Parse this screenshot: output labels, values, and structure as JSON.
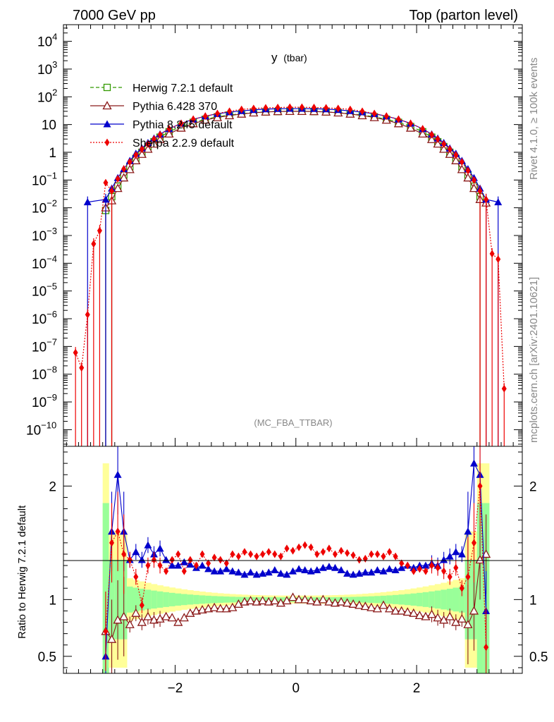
{
  "chart_data": {
    "type": "line",
    "header_left": "7000 GeV pp",
    "header_right": "Top (parton level)",
    "title_main": "y",
    "title_sub": "(tbar)",
    "watermark": "(MC_FBA_TTBAR)",
    "side_label_top": "Rivet 4.1.0, ≥ 100k events",
    "side_label_bottom": "mcplots.cern.ch [arXiv:2401.10621]",
    "xlabel": "",
    "ylabel_ratio": "Ratio to Herwig 7.2.1 default",
    "xlim": [
      -3.85,
      3.75
    ],
    "ylim_main_log10": [
      -10.6,
      4.6
    ],
    "ylim_ratio": [
      0.35,
      2.35
    ],
    "x_ticks": [
      {
        "v": -2,
        "label": "−2"
      },
      {
        "v": 0,
        "label": "0"
      },
      {
        "v": 2,
        "label": "2"
      }
    ],
    "main_ticks": [
      {
        "m": "10",
        "e": "4",
        "v": 4
      },
      {
        "m": "10",
        "e": "3",
        "v": 3
      },
      {
        "m": "10",
        "e": "2",
        "v": 2
      },
      {
        "m": "10",
        "e": "",
        "v": 1
      },
      {
        "m": "1",
        "e": "",
        "v": 0
      },
      {
        "m": "10",
        "e": "−1",
        "v": -1
      },
      {
        "m": "10",
        "e": "−2",
        "v": -2
      },
      {
        "m": "10",
        "e": "−3",
        "v": -3
      },
      {
        "m": "10",
        "e": "−4",
        "v": -4
      },
      {
        "m": "10",
        "e": "−5",
        "v": -5
      },
      {
        "m": "10",
        "e": "−6",
        "v": -6
      },
      {
        "m": "10",
        "e": "−7",
        "v": -7
      },
      {
        "m": "10",
        "e": "−8",
        "v": -8
      },
      {
        "m": "10",
        "e": "−9",
        "v": -9
      },
      {
        "m": "10",
        "e": "−10",
        "v": -10
      }
    ],
    "ratio_ticks": [
      {
        "v": 2,
        "label": "2"
      },
      {
        "v": 1,
        "label": "1"
      },
      {
        "v": 0.5,
        "label": "0.5"
      }
    ],
    "series": [
      {
        "name": "Herwig 7.2.1 default",
        "color": "#339900",
        "marker": "open-square",
        "dash": "5,3",
        "x": [
          -3.15,
          -3.05,
          -2.95,
          -2.85,
          -2.75,
          -2.65,
          -2.55,
          -2.45,
          -2.35,
          -2.25,
          -2.1,
          -1.9,
          -1.7,
          -1.5,
          -1.3,
          -1.1,
          -0.9,
          -0.7,
          -0.5,
          -0.3,
          -0.1,
          0.1,
          0.3,
          0.5,
          0.7,
          0.9,
          1.1,
          1.3,
          1.5,
          1.7,
          1.9,
          2.1,
          2.25,
          2.35,
          2.45,
          2.55,
          2.65,
          2.75,
          2.85,
          2.95,
          3.05
        ],
        "y": [
          0.008,
          0.025,
          0.06,
          0.15,
          0.3,
          0.6,
          1.0,
          1.6,
          2.4,
          3.5,
          5.5,
          8.5,
          12,
          15.5,
          19,
          22,
          24.5,
          27,
          28.5,
          29.5,
          30,
          30,
          29.5,
          28.5,
          27,
          24.5,
          22,
          19,
          15.5,
          12,
          8.5,
          5.5,
          3.5,
          2.4,
          1.6,
          1.0,
          0.6,
          0.3,
          0.15,
          0.06,
          0.025
        ]
      },
      {
        "name": "Pythia 6.428 370",
        "color": "#8b1a1a",
        "marker": "open-triangle",
        "dash": "",
        "x": [
          -3.15,
          -3.05,
          -2.95,
          -2.85,
          -2.75,
          -2.65,
          -2.55,
          -2.45,
          -2.35,
          -2.25,
          -2.1,
          -1.9,
          -1.7,
          -1.5,
          -1.3,
          -1.1,
          -0.9,
          -0.7,
          -0.5,
          -0.3,
          -0.1,
          0.1,
          0.3,
          0.5,
          0.7,
          0.9,
          1.1,
          1.3,
          1.5,
          1.7,
          1.9,
          2.1,
          2.25,
          2.35,
          2.45,
          2.55,
          2.65,
          2.75,
          2.85,
          2.95,
          3.05,
          3.15
        ],
        "y": [
          0.01,
          0.018,
          0.05,
          0.12,
          0.24,
          0.5,
          0.85,
          1.3,
          2.0,
          2.9,
          4.6,
          7.5,
          10.8,
          14.5,
          18,
          21,
          24,
          26.5,
          28.5,
          29.5,
          30,
          30,
          29.5,
          28.5,
          26.5,
          24,
          21,
          18,
          14.5,
          10.8,
          7.5,
          4.6,
          2.9,
          2.0,
          1.3,
          0.85,
          0.5,
          0.24,
          0.12,
          0.05,
          0.02,
          0.015
        ]
      },
      {
        "name": "Pythia 8.245 default",
        "color": "#0000cc",
        "marker": "filled-triangle",
        "dash": "",
        "x": [
          -3.45,
          -3.15,
          -3.05,
          -2.95,
          -2.85,
          -2.75,
          -2.65,
          -2.55,
          -2.45,
          -2.35,
          -2.25,
          -2.1,
          -1.9,
          -1.7,
          -1.5,
          -1.3,
          -1.1,
          -0.9,
          -0.7,
          -0.5,
          -0.3,
          -0.1,
          0.1,
          0.3,
          0.5,
          0.7,
          0.9,
          1.1,
          1.3,
          1.5,
          1.7,
          1.9,
          2.1,
          2.25,
          2.35,
          2.45,
          2.55,
          2.65,
          2.75,
          2.85,
          2.95,
          3.05,
          3.15,
          3.35
        ],
        "y": [
          0.016,
          0.02,
          0.05,
          0.12,
          0.25,
          0.5,
          0.9,
          1.4,
          2.2,
          3.2,
          4.5,
          7.0,
          11,
          15.5,
          20,
          24.5,
          28,
          31,
          34,
          36,
          37,
          37.5,
          37.5,
          37,
          36,
          34,
          31,
          28,
          24.5,
          20,
          15.5,
          11,
          7.0,
          4.5,
          3.2,
          2.2,
          1.4,
          0.9,
          0.5,
          0.25,
          0.12,
          0.05,
          0.02,
          0.016
        ]
      },
      {
        "name": "Sherpa 2.2.9 default",
        "color": "#ee0000",
        "marker": "filled-diamond",
        "dash": "2,2",
        "x": [
          -3.65,
          -3.55,
          -3.45,
          -3.35,
          -3.25,
          -3.15,
          -3.05,
          -2.95,
          -2.85,
          -2.75,
          -2.65,
          -2.55,
          -2.45,
          -2.35,
          -2.25,
          -2.1,
          -1.9,
          -1.7,
          -1.5,
          -1.3,
          -1.1,
          -0.9,
          -0.7,
          -0.5,
          -0.3,
          -0.1,
          0.1,
          0.3,
          0.5,
          0.7,
          0.9,
          1.1,
          1.3,
          1.5,
          1.7,
          1.9,
          2.1,
          2.25,
          2.35,
          2.45,
          2.55,
          2.65,
          2.75,
          2.85,
          2.95,
          3.05,
          3.15,
          3.25,
          3.35,
          3.45
        ],
        "y": [
          6e-08,
          1.7e-08,
          1.4e-06,
          0.0005,
          0.0015,
          0.08,
          0.04,
          0.11,
          0.25,
          0.45,
          0.8,
          1.3,
          2.0,
          3.0,
          4.3,
          7.0,
          11,
          15.5,
          20,
          25,
          30,
          35,
          38,
          40,
          41,
          42,
          42,
          41,
          40,
          38,
          35,
          30,
          25,
          20,
          15.5,
          11,
          7.0,
          4.3,
          3.0,
          2.0,
          1.3,
          0.8,
          0.45,
          0.22,
          0.1,
          0.04,
          0.02,
          0.00022,
          0.00014,
          3e-09
        ]
      }
    ],
    "ratio_series": [
      {
        "name": "Pythia 6.428 370",
        "x": [
          -3.15,
          -3.05,
          -2.95,
          -2.85,
          -2.75,
          -2.65,
          -2.55,
          -2.45,
          -2.35,
          -2.25,
          -2.15,
          -2.05,
          -1.95,
          -1.85,
          -1.75,
          -1.65,
          -1.55,
          -1.45,
          -1.35,
          -1.25,
          -1.15,
          -1.05,
          -0.95,
          -0.85,
          -0.75,
          -0.65,
          -0.55,
          -0.45,
          -0.35,
          -0.25,
          -0.15,
          -0.05,
          0.05,
          0.15,
          0.25,
          0.35,
          0.45,
          0.55,
          0.65,
          0.75,
          0.85,
          0.95,
          1.05,
          1.15,
          1.25,
          1.35,
          1.45,
          1.55,
          1.65,
          1.75,
          1.85,
          1.95,
          2.05,
          2.15,
          2.25,
          2.35,
          2.45,
          2.55,
          2.65,
          2.75,
          2.85,
          2.95,
          3.05,
          3.15
        ],
        "y": [
          0.72,
          0.65,
          0.82,
          0.85,
          0.78,
          0.88,
          0.8,
          0.85,
          0.82,
          0.83,
          0.85,
          0.84,
          0.8,
          0.84,
          0.88,
          0.9,
          0.91,
          0.92,
          0.93,
          0.92,
          0.92,
          0.93,
          0.96,
          0.98,
          0.99,
          0.98,
          0.99,
          0.98,
          0.99,
          0.97,
          0.99,
          1.02,
          1.0,
          1.0,
          0.99,
          0.98,
          1.0,
          0.98,
          0.97,
          0.98,
          0.97,
          0.96,
          0.95,
          0.94,
          0.93,
          0.92,
          0.95,
          0.92,
          0.9,
          0.9,
          0.89,
          0.88,
          0.86,
          0.85,
          0.87,
          0.84,
          0.82,
          0.85,
          0.8,
          0.83,
          0.78,
          0.9,
          1.35,
          1.4
        ]
      },
      {
        "name": "Pythia 8.245 default",
        "x": [
          -3.15,
          -3.05,
          -2.95,
          -2.85,
          -2.75,
          -2.65,
          -2.55,
          -2.45,
          -2.35,
          -2.25,
          -2.15,
          -2.05,
          -1.95,
          -1.85,
          -1.75,
          -1.65,
          -1.55,
          -1.45,
          -1.35,
          -1.25,
          -1.15,
          -1.05,
          -0.95,
          -0.85,
          -0.75,
          -0.65,
          -0.55,
          -0.45,
          -0.35,
          -0.25,
          -0.15,
          -0.05,
          0.05,
          0.15,
          0.25,
          0.35,
          0.45,
          0.55,
          0.65,
          0.75,
          0.85,
          0.95,
          1.05,
          1.15,
          1.25,
          1.35,
          1.45,
          1.55,
          1.65,
          1.75,
          1.85,
          1.95,
          2.05,
          2.15,
          2.25,
          2.35,
          2.45,
          2.55,
          2.65,
          2.75,
          2.85,
          2.95,
          3.05,
          3.15
        ],
        "y": [
          0.5,
          1.6,
          2.1,
          1.6,
          1.35,
          1.42,
          1.35,
          1.48,
          1.4,
          1.45,
          1.35,
          1.3,
          1.3,
          1.33,
          1.31,
          1.28,
          1.3,
          1.27,
          1.25,
          1.25,
          1.27,
          1.25,
          1.24,
          1.22,
          1.24,
          1.22,
          1.23,
          1.24,
          1.26,
          1.23,
          1.22,
          1.25,
          1.27,
          1.26,
          1.25,
          1.26,
          1.28,
          1.29,
          1.28,
          1.26,
          1.23,
          1.22,
          1.23,
          1.24,
          1.24,
          1.26,
          1.25,
          1.27,
          1.26,
          1.28,
          1.3,
          1.28,
          1.3,
          1.3,
          1.32,
          1.3,
          1.35,
          1.38,
          1.42,
          1.4,
          1.6,
          2.2,
          2.1,
          0.9
        ]
      },
      {
        "name": "Sherpa 2.2.9 default",
        "x": [
          -3.15,
          -3.05,
          -2.95,
          -2.85,
          -2.75,
          -2.65,
          -2.55,
          -2.45,
          -2.35,
          -2.25,
          -2.15,
          -2.05,
          -1.95,
          -1.85,
          -1.75,
          -1.65,
          -1.55,
          -1.45,
          -1.35,
          -1.25,
          -1.15,
          -1.05,
          -0.95,
          -0.85,
          -0.75,
          -0.65,
          -0.55,
          -0.45,
          -0.35,
          -0.25,
          -0.15,
          -0.05,
          0.05,
          0.15,
          0.25,
          0.35,
          0.45,
          0.55,
          0.65,
          0.75,
          0.85,
          0.95,
          1.05,
          1.15,
          1.25,
          1.35,
          1.45,
          1.55,
          1.65,
          1.75,
          1.85,
          1.95,
          2.05,
          2.15,
          2.25,
          2.35,
          2.45,
          2.55,
          2.65,
          2.75,
          2.85,
          2.95,
          3.05,
          3.15
        ],
        "y": [
          0.72,
          1.5,
          1.6,
          1.4,
          1.35,
          1.2,
          0.95,
          1.3,
          1.35,
          1.3,
          1.25,
          1.35,
          1.4,
          1.25,
          1.35,
          1.3,
          1.4,
          1.32,
          1.37,
          1.35,
          1.32,
          1.4,
          1.38,
          1.42,
          1.4,
          1.38,
          1.4,
          1.42,
          1.4,
          1.38,
          1.45,
          1.43,
          1.46,
          1.48,
          1.46,
          1.4,
          1.42,
          1.45,
          1.4,
          1.43,
          1.41,
          1.39,
          1.35,
          1.36,
          1.4,
          1.4,
          1.38,
          1.42,
          1.38,
          1.32,
          1.3,
          1.25,
          1.27,
          1.25,
          1.3,
          1.28,
          1.25,
          1.2,
          1.28,
          1.1,
          1.2,
          1.5,
          2.0,
          0.58
        ]
      }
    ]
  }
}
